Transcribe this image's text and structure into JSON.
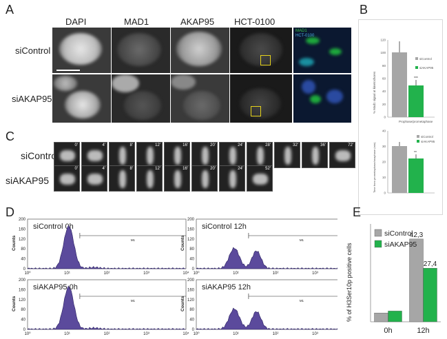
{
  "panels": {
    "A": "A",
    "B": "B",
    "C": "C",
    "D": "D",
    "E": "E"
  },
  "panelA": {
    "columns": [
      "DAPI",
      "MAD1",
      "AKAP95",
      "HCT-0100"
    ],
    "rows": [
      "siControl",
      "siAKAP95"
    ],
    "merge_legend": [
      "MAD1",
      "HCT-0100"
    ]
  },
  "panelB": {
    "top": {
      "ylabel": "% Mad1 signal at kinetochores",
      "xlabel": "Prophase/prometaphase",
      "legend": [
        "siControl",
        "siAKAP95"
      ],
      "sig": "***",
      "yticks": [
        "0",
        "20",
        "40",
        "60",
        "80",
        "100",
        "120"
      ]
    },
    "bottom": {
      "ylabel": "Time from prometaphase/anaphase (min)",
      "legend": [
        "siControl",
        "siAKAP95"
      ],
      "sig": "**",
      "yticks": [
        "0",
        "10",
        "20",
        "30",
        "40"
      ]
    }
  },
  "panelC": {
    "rows": [
      "siControl",
      "siAKAP95"
    ],
    "times_control": [
      "0'",
      "4'",
      "8'",
      "12'",
      "16'",
      "20'",
      "24'",
      "28'",
      "32'",
      "36'",
      "72'"
    ],
    "times_akap": [
      "0'",
      "4'",
      "8'",
      "12'",
      "16'",
      "20'",
      "24'",
      "52'"
    ]
  },
  "panelD": {
    "ylabel": "Counts",
    "yticks": [
      "0",
      "40",
      "80",
      "120",
      "160",
      "200"
    ],
    "xticks": [
      "10⁰",
      "10¹",
      "10²",
      "10³",
      "10⁴"
    ],
    "gate_label": "M1",
    "plots": [
      "siControl  0h",
      "siControl  12h",
      "siAKAP95 0h",
      "siAKAP95 12h"
    ]
  },
  "chart_data": {
    "type": "bar",
    "categories": [
      "0h",
      "12h"
    ],
    "series": [
      {
        "name": "siControl",
        "values": [
          4.5,
          42.3
        ]
      },
      {
        "name": "siAKAP95",
        "values": [
          5.5,
          27.4
        ]
      }
    ],
    "data_labels": [
      "42,3",
      "27,4"
    ],
    "ylabel": "% of H3Ser10p positive cells",
    "ylim": [
      0,
      50
    ],
    "colors": {
      "siControl": "#a6a6a6",
      "siAKAP95": "#22b24c"
    },
    "legend_position": "top"
  }
}
